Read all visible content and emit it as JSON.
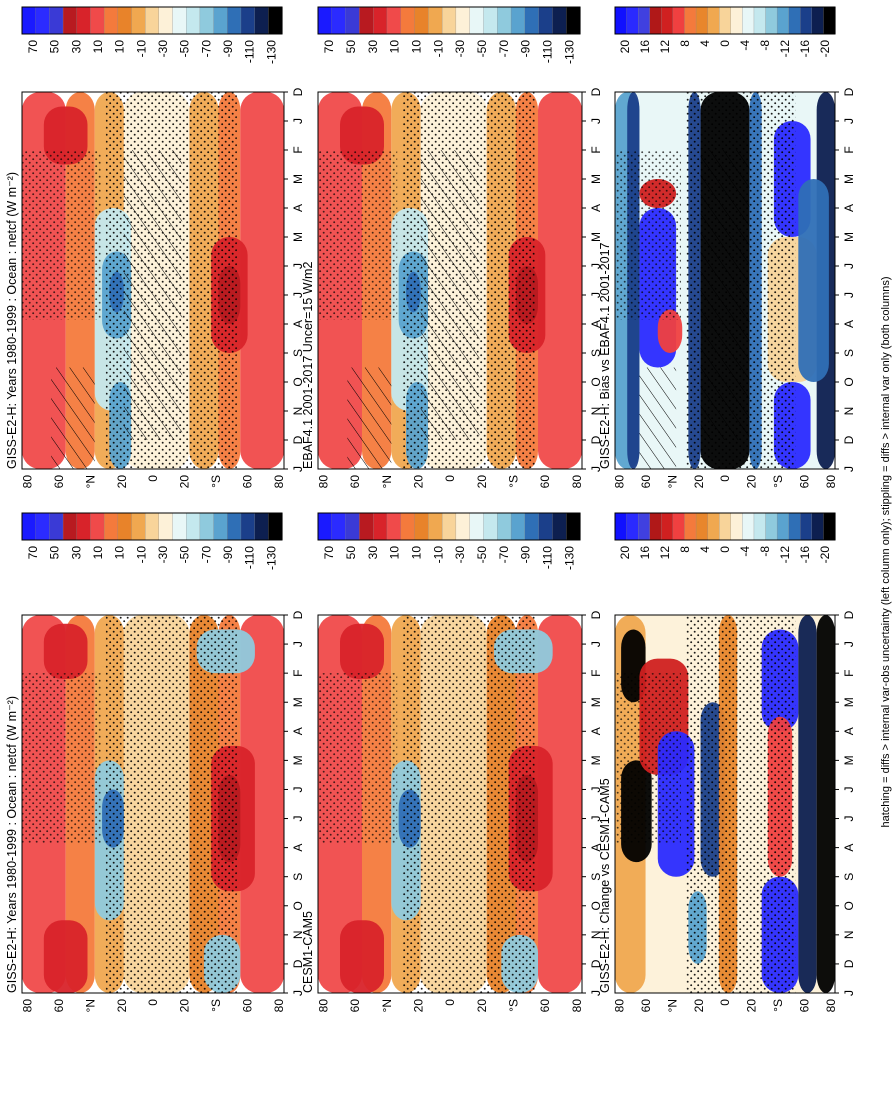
{
  "figure": {
    "footnote": "hatching = diffs > internal var-obs uncertainty (left column only); stippling = diffs > internal var only (both columns)"
  },
  "colorbars": {
    "absolute": {
      "labels": [
        "70",
        "50",
        "30",
        "10",
        "10",
        "-10",
        "-30",
        "-50",
        "-70",
        "-90",
        "-110",
        "-130"
      ],
      "colors": [
        "#1a1aff",
        "#2b2bff",
        "#3a3ad6",
        "#b81a20",
        "#d8232a",
        "#f04a4a",
        "#f47a3c",
        "#e8832a",
        "#f0a850",
        "#f8d49a",
        "#fdf1d8",
        "#e8f7f7",
        "#c4e8ee",
        "#8fcadd",
        "#5aa3cf",
        "#2f6fb6",
        "#1b3f8a",
        "#0d1f50",
        "#000000"
      ]
    },
    "difference": {
      "labels": [
        "20",
        "16",
        "12",
        "8",
        "4",
        "0",
        "-4",
        "-8",
        "-12",
        "-16",
        "-20"
      ],
      "colors": [
        "#1010ff",
        "#2a2aff",
        "#4040e0",
        "#b01818",
        "#d02020",
        "#f04040",
        "#f47a3c",
        "#e8862c",
        "#f0a850",
        "#f8d49a",
        "#fdf1d8",
        "#e8f7f7",
        "#c4e8ee",
        "#8fcadd",
        "#5aa3cf",
        "#2f6fb6",
        "#1b3f8a",
        "#0d1f50",
        "#000000"
      ]
    }
  },
  "chart_data": [
    {
      "type": "heatmap",
      "title": "GISS-E2-H: Years 1980-1999 : Ocean : netcf (W m⁻²)",
      "x_months": [
        "D",
        "J",
        "F",
        "M",
        "A",
        "M",
        "J",
        "J",
        "A",
        "S",
        "O",
        "N",
        "D",
        "J"
      ],
      "y_ticks": [
        "80",
        "60",
        "°N",
        "20",
        "0",
        "20",
        "°S",
        "60",
        "80"
      ],
      "lat_range": [
        -90,
        90
      ],
      "scale": "absolute",
      "hatching": true,
      "stippling": true
    },
    {
      "type": "heatmap",
      "title": "GISS-E2-H: Years 1980-1999 : Ocean : netcf (W m⁻²)",
      "x_months": [
        "D",
        "J",
        "F",
        "M",
        "A",
        "M",
        "J",
        "J",
        "A",
        "S",
        "O",
        "N",
        "D",
        "J"
      ],
      "y_ticks": [
        "80",
        "60",
        "°N",
        "20",
        "0",
        "20",
        "°S",
        "60",
        "80"
      ],
      "lat_range": [
        -90,
        90
      ],
      "scale": "absolute",
      "hatching": false,
      "stippling": true
    },
    {
      "type": "heatmap",
      "title": "EBAF4.1 2001-2017 Uncer=15 W/m2",
      "x_months": [
        "D",
        "J",
        "F",
        "M",
        "A",
        "M",
        "J",
        "J",
        "A",
        "S",
        "O",
        "N",
        "D",
        "J"
      ],
      "y_ticks": [
        "80",
        "60",
        "°N",
        "20",
        "0",
        "20",
        "°S",
        "60",
        "80"
      ],
      "lat_range": [
        -90,
        90
      ],
      "scale": "absolute",
      "hatching": true,
      "stippling": true
    },
    {
      "type": "heatmap",
      "title": "CESM1-CAM5",
      "x_months": [
        "D",
        "J",
        "F",
        "M",
        "A",
        "M",
        "J",
        "J",
        "A",
        "S",
        "O",
        "N",
        "D",
        "J"
      ],
      "y_ticks": [
        "80",
        "60",
        "°N",
        "20",
        "0",
        "20",
        "°S",
        "60",
        "80"
      ],
      "lat_range": [
        -90,
        90
      ],
      "scale": "absolute",
      "hatching": false,
      "stippling": true
    },
    {
      "type": "heatmap",
      "title": "GISS-E2-H: Bias vs EBAF4.1 2001-2017",
      "x_months": [
        "D",
        "J",
        "F",
        "M",
        "A",
        "M",
        "J",
        "J",
        "A",
        "S",
        "O",
        "N",
        "D",
        "J"
      ],
      "y_ticks": [
        "80",
        "60",
        "°N",
        "20",
        "0",
        "20",
        "°S",
        "60",
        "80"
      ],
      "lat_range": [
        -90,
        90
      ],
      "scale": "difference",
      "hatching": true,
      "stippling": true
    },
    {
      "type": "heatmap",
      "title": "GISS-E2-H: Change vs CESM1-CAM5",
      "x_months": [
        "D",
        "J",
        "F",
        "M",
        "A",
        "M",
        "J",
        "J",
        "A",
        "S",
        "O",
        "N",
        "D",
        "J"
      ],
      "y_ticks": [
        "80",
        "60",
        "°N",
        "20",
        "0",
        "20",
        "°S",
        "60",
        "80"
      ],
      "lat_range": [
        -90,
        90
      ],
      "scale": "difference",
      "hatching": false,
      "stippling": true
    }
  ]
}
